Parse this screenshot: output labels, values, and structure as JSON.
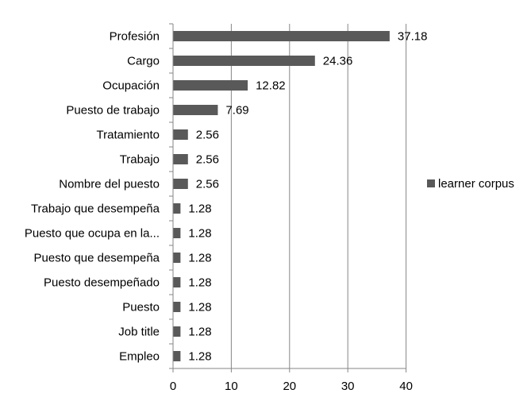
{
  "chart_data": {
    "type": "bar",
    "orientation": "horizontal",
    "categories": [
      "Profesión",
      "Cargo",
      "Ocupación",
      "Puesto de trabajo",
      "Tratamiento",
      "Trabajo",
      "Nombre del puesto",
      "Trabajo que desempeña",
      "Puesto que ocupa en la...",
      "Puesto que desempeña",
      "Puesto desempeñado",
      "Puesto",
      "Job title",
      "Empleo"
    ],
    "series": [
      {
        "name": "learner corpus",
        "values": [
          37.18,
          24.36,
          12.82,
          7.69,
          2.56,
          2.56,
          2.56,
          1.28,
          1.28,
          1.28,
          1.28,
          1.28,
          1.28,
          1.28
        ],
        "color": "#595959"
      }
    ],
    "data_labels": [
      "37.18",
      "24.36",
      "12.82",
      "7.69",
      "2.56",
      "2.56",
      "2.56",
      "1.28",
      "1.28",
      "1.28",
      "1.28",
      "1.28",
      "1.28",
      "1.28"
    ],
    "x_ticks": [
      "0",
      "10",
      "20",
      "30",
      "40"
    ],
    "xlim": [
      0,
      40
    ],
    "grid": true,
    "legend_position": "right",
    "title": "",
    "xlabel": "",
    "ylabel": ""
  }
}
